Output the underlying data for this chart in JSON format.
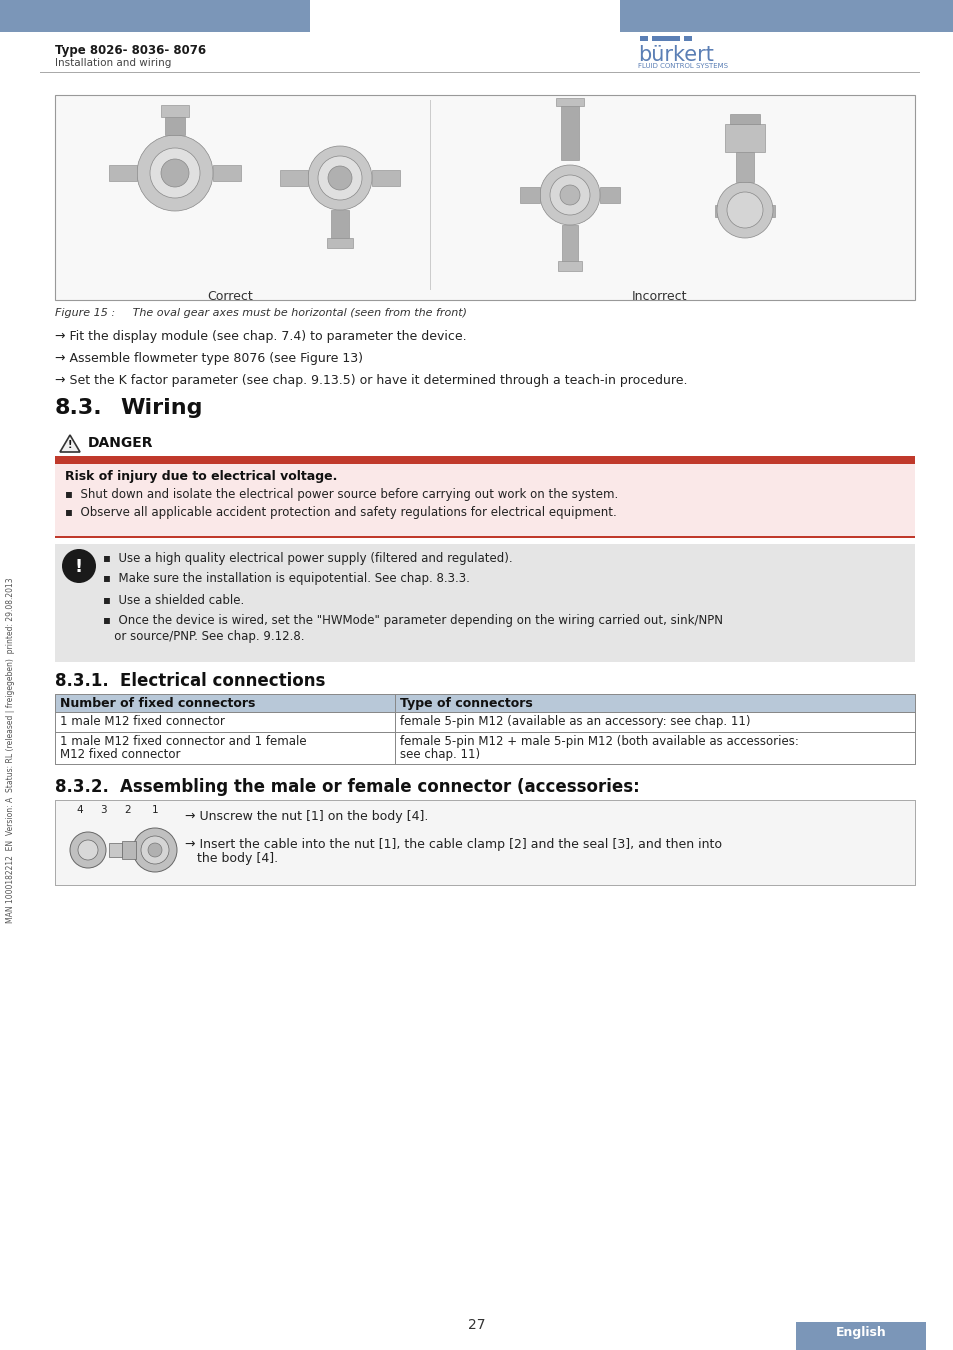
{
  "page_bg": "#ffffff",
  "header_bar_color": "#7b96b8",
  "header_text_left_bold": "Type 8026- 8036- 8076",
  "header_text_left_sub": "Installation and wiring",
  "burkert_blue": "#5b7fb5",
  "figure_caption": "Figure 15 :     The oval gear axes must be horizontal (seen from the front)",
  "body_lines": [
    "→ Fit the display module (see chap. 7.4) to parameter the device.",
    "→ Assemble flowmeter type 8076 (see Figure 13)",
    "→ Set the K factor parameter (see chap. 9.13.5) or have it determined through a teach-in procedure."
  ],
  "section_title": "8.3.",
  "section_title2": "Wiring",
  "danger_title": "DANGER",
  "danger_bar_color": "#c0392b",
  "danger_bg_color": "#fae8e8",
  "danger_header": "Risk of injury due to electrical voltage.",
  "danger_bullets": [
    "Shut down and isolate the electrical power source before carrying out work on the system.",
    "Observe all applicable accident protection and safety regulations for electrical equipment."
  ],
  "note_bg": "#e5e5e5",
  "note_bullets": [
    "Use a high quality electrical power supply (filtered and regulated).",
    "Make sure the installation is equipotential. See chap. 8.3.3.",
    "Use a shielded cable.",
    "Once the device is wired, set the \"HWMode\" parameter depending on the wiring carried out, sink/NPN",
    "or source/PNP. See chap. 9.12.8."
  ],
  "sub1_num": "8.3.1.",
  "sub1_title": "Electrical connections",
  "table_hdr_bg": "#b8c8d8",
  "table_col1_hdr": "Number of fixed connectors",
  "table_col2_hdr": "Type of connectors",
  "table_row1_c1": "1 male M12 fixed connector",
  "table_row1_c2": "female 5-pin M12 (available as an accessory: see chap. 11)",
  "table_row2_c1a": "1 male M12 fixed connector and 1 female",
  "table_row2_c1b": "M12 fixed connector",
  "table_row2_c2a": "female 5-pin M12 + male 5-pin M12 (both available as accessories:",
  "table_row2_c2b": "see chap. 11)",
  "sub2_num": "8.3.2.",
  "sub2_title": "Assembling the male or female connector (accessories:",
  "asm_line1": "→ Unscrew the nut [1] on the body [4].",
  "asm_line2": "→ Insert the cable into the nut [1], the cable clamp [2] and the seal [3], and then into",
  "asm_line3": "   the body [4].",
  "page_num": "27",
  "sidebar_text": "MAN 1000182212  EN  Version: A  Status: RL (released | freigegeben)  printed: 29.08.2013",
  "english_bg": "#7b96b8",
  "english_text": "English",
  "correct_label": "Correct",
  "incorrect_label": "Incorrect"
}
